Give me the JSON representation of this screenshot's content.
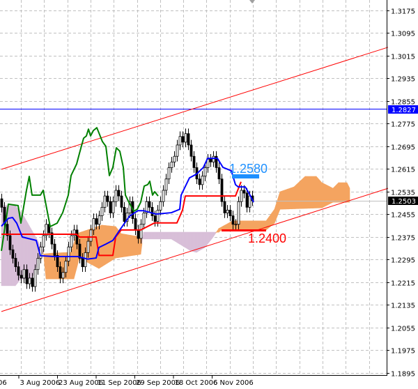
{
  "chart_data": {
    "type": "candlestick",
    "title": "",
    "y_ticks": [
      "1.3175",
      "1.3095",
      "1.3015",
      "1.2935",
      "1.2855",
      "1.2775",
      "1.2695",
      "1.2615",
      "1.2535",
      "1.2455",
      "1.2375",
      "1.2295",
      "1.2215",
      "1.2135",
      "1.2055",
      "1.1975",
      "1.1895"
    ],
    "ylim": [
      1.1895,
      1.3175
    ],
    "x_labels": [
      "06",
      "3 Aug 2006",
      "23 Aug 2006",
      "11 Sep 2006",
      "29 Sep 2006",
      "18 Oct 2006",
      "6 Nov 2006"
    ],
    "grid": true,
    "closes": [
      1.248,
      1.242,
      1.238,
      1.233,
      1.23,
      1.227,
      1.224,
      1.223,
      1.226,
      1.221,
      1.223,
      1.22,
      1.226,
      1.23,
      1.234,
      1.238,
      1.242,
      1.239,
      1.235,
      1.231,
      1.227,
      1.223,
      1.225,
      1.229,
      1.234,
      1.238,
      1.24,
      1.235,
      1.23,
      1.227,
      1.232,
      1.236,
      1.24,
      1.244,
      1.242,
      1.245,
      1.248,
      1.252,
      1.25,
      1.246,
      1.25,
      1.254,
      1.252,
      1.248,
      1.243,
      1.246,
      1.25,
      1.244,
      1.24,
      1.237,
      1.242,
      1.246,
      1.25,
      1.248,
      1.245,
      1.243,
      1.247,
      1.25,
      1.254,
      1.258,
      1.262,
      1.264,
      1.266,
      1.27,
      1.273,
      1.271,
      1.274,
      1.27,
      1.266,
      1.262,
      1.258,
      1.256,
      1.259,
      1.262,
      1.265,
      1.264,
      1.266,
      1.262,
      1.258,
      1.25,
      1.246,
      1.247,
      1.245,
      1.242,
      1.242,
      1.25,
      1.254,
      1.253,
      1.248,
      1.252,
      1.2503
    ],
    "tenkan": [
      [
        0,
        1.2413
      ],
      [
        2.5,
        1.2441
      ],
      [
        4,
        1.2444
      ],
      [
        5.5,
        1.2424
      ],
      [
        7.5,
        1.2375
      ],
      [
        12.5,
        1.2363
      ],
      [
        14,
        1.2309
      ],
      [
        19,
        1.2306
      ],
      [
        27.5,
        1.2306
      ],
      [
        31,
        1.2297
      ],
      [
        34,
        1.2301
      ],
      [
        35,
        1.2338
      ],
      [
        37.5,
        1.235
      ],
      [
        40,
        1.2363
      ],
      [
        42.5,
        1.24
      ],
      [
        46,
        1.2449
      ],
      [
        49,
        1.2468
      ],
      [
        51,
        1.2468
      ],
      [
        55.5,
        1.2456
      ],
      [
        61,
        1.2461
      ],
      [
        64,
        1.2473
      ],
      [
        64.5,
        1.2523
      ],
      [
        67.5,
        1.2584
      ],
      [
        70,
        1.2597
      ],
      [
        72.5,
        1.2621
      ],
      [
        74,
        1.2653
      ],
      [
        77.5,
        1.2653
      ],
      [
        79.5,
        1.2621
      ],
      [
        82.5,
        1.2609
      ],
      [
        84,
        1.256
      ],
      [
        85,
        1.2552
      ],
      [
        87.5,
        1.2552
      ],
      [
        89,
        1.2527
      ],
      [
        90.5,
        1.2498
      ]
    ],
    "kijun": [
      [
        0,
        1.2385
      ],
      [
        27,
        1.2385
      ],
      [
        28,
        1.2375
      ],
      [
        34,
        1.2375
      ],
      [
        35,
        1.231
      ],
      [
        40,
        1.231
      ],
      [
        41,
        1.2375
      ],
      [
        43,
        1.24
      ],
      [
        50,
        1.24
      ],
      [
        55,
        1.2425
      ],
      [
        63,
        1.2425
      ],
      [
        65,
        1.247
      ],
      [
        66,
        1.252
      ],
      [
        84,
        1.252
      ],
      [
        86,
        1.257
      ]
    ],
    "chikou": [
      [
        0,
        1.2326
      ],
      [
        2.5,
        1.2491
      ],
      [
        6,
        1.2486
      ],
      [
        7,
        1.2424
      ],
      [
        9,
        1.254
      ],
      [
        10,
        1.2589
      ],
      [
        11,
        1.2523
      ],
      [
        14,
        1.2523
      ],
      [
        15,
        1.254
      ],
      [
        17.5,
        1.2412
      ],
      [
        20,
        1.2424
      ],
      [
        22,
        1.2461
      ],
      [
        24,
        1.2523
      ],
      [
        25,
        1.2592
      ],
      [
        27,
        1.2633
      ],
      [
        28,
        1.267
      ],
      [
        29.5,
        1.2724
      ],
      [
        30.5,
        1.2732
      ],
      [
        31.25,
        1.2756
      ],
      [
        32,
        1.2732
      ],
      [
        33,
        1.2751
      ],
      [
        34.25,
        1.2761
      ],
      [
        36.25,
        1.2712
      ],
      [
        37.5,
        1.2695
      ],
      [
        38.75,
        1.2592
      ],
      [
        40,
        1.2621
      ],
      [
        41.25,
        1.269
      ],
      [
        42.5,
        1.2678
      ],
      [
        43.75,
        1.2621
      ],
      [
        44.5,
        1.2523
      ],
      [
        45.75,
        1.2498
      ],
      [
        47.5,
        1.2466
      ],
      [
        48.75,
        1.2473
      ],
      [
        50,
        1.2498
      ],
      [
        51.25,
        1.2555
      ],
      [
        52.5,
        1.256
      ],
      [
        53.25,
        1.2572
      ],
      [
        54.25,
        1.2523
      ],
      [
        55,
        1.2535
      ],
      [
        56.25,
        1.252
      ]
    ],
    "span_a": [
      [
        0,
        1.2203
      ],
      [
        5,
        1.2203
      ],
      [
        7,
        1.2227
      ],
      [
        11,
        1.2227
      ],
      [
        14,
        1.2314
      ],
      [
        18,
        1.2318
      ],
      [
        25,
        1.2321
      ],
      [
        27,
        1.2387
      ],
      [
        36,
        1.2417
      ],
      [
        41,
        1.2412
      ],
      [
        43,
        1.2387
      ],
      [
        50,
        1.2375
      ],
      [
        51,
        1.2368
      ],
      [
        61,
        1.2368
      ],
      [
        68,
        1.2326
      ],
      [
        70,
        1.2321
      ],
      [
        73,
        1.2338
      ],
      [
        76,
        1.2375
      ],
      [
        78,
        1.2405
      ],
      [
        83,
        1.2432
      ],
      [
        95,
        1.2432
      ],
      [
        98,
        1.2473
      ],
      [
        100,
        1.2535
      ],
      [
        105,
        1.2552
      ],
      [
        109,
        1.2589
      ],
      [
        113,
        1.2589
      ],
      [
        115,
        1.2567
      ],
      [
        119,
        1.2547
      ],
      [
        121,
        1.2567
      ],
      [
        124,
        1.2567
      ],
      [
        125,
        1.2547
      ]
    ],
    "span_b": [
      [
        0,
        1.2486
      ],
      [
        5,
        1.2486
      ],
      [
        8,
        1.2449
      ],
      [
        13,
        1.2363
      ],
      [
        15,
        1.2326
      ],
      [
        16,
        1.2227
      ],
      [
        26,
        1.2227
      ],
      [
        28,
        1.2301
      ],
      [
        35,
        1.2264
      ],
      [
        41,
        1.2301
      ],
      [
        50,
        1.2314
      ],
      [
        51,
        1.2392
      ],
      [
        78,
        1.2392
      ],
      [
        79,
        1.24
      ],
      [
        95,
        1.24
      ],
      [
        98,
        1.2424
      ],
      [
        100,
        1.2473
      ],
      [
        115,
        1.2478
      ],
      [
        119,
        1.2498
      ],
      [
        125,
        1.2498
      ]
    ],
    "channel_lines": [
      [
        [
          0,
          1.2614
        ],
        [
          138.75,
          1.3045
        ]
      ],
      [
        [
          0,
          1.2112
        ],
        [
          138.75,
          1.2547
        ]
      ]
    ],
    "horizontal_lines": {
      "blue": 1.2827,
      "bid": 1.2503
    },
    "price_tags": {
      "blue": "1.2827",
      "bid": "1.2503"
    },
    "annotations": {
      "resistance": {
        "text": "1.2580",
        "price": 1.258
      },
      "support": {
        "text": "1.2400",
        "price": 1.24
      }
    },
    "colors": {
      "tenkan": "#0000ff",
      "kijun": "#ff0000",
      "chikou": "#008000",
      "cloud_up": "#f4a460",
      "cloud_down": "#d8bfd8",
      "channel": "#ff0000",
      "grid": "#c0c0c0",
      "blue_tag": "#0000ff",
      "resistance": "#1e90ff",
      "support": "#ff0000"
    }
  }
}
